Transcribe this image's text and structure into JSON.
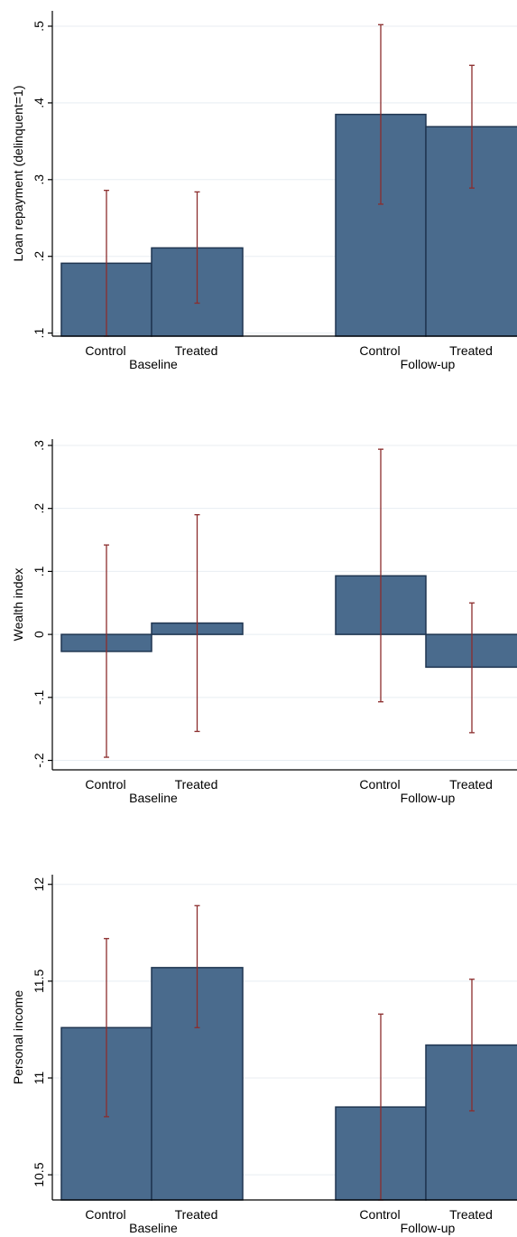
{
  "style": {
    "bar_fill": "#4a6b8d",
    "bar_stroke": "#1f3550",
    "error_color": "#8b2d2d",
    "grid_color": "#e8eef2",
    "axis_color": "#000000"
  },
  "chart_data": [
    {
      "type": "bar",
      "ylabel": "Loan repayment (delinquent=1)",
      "ylim": [
        0.096,
        0.52
      ],
      "yticks": [
        0.1,
        0.2,
        0.3,
        0.4,
        0.5
      ],
      "ytick_labels": [
        ".1",
        ".2",
        ".3",
        ".4",
        ".5"
      ],
      "baseline": 0.096,
      "groups": [
        "Baseline",
        "Follow-up"
      ],
      "categories": [
        "Control",
        "Treated"
      ],
      "values": [
        [
          0.191,
          0.211
        ],
        [
          0.385,
          0.369
        ]
      ],
      "ci_low": [
        [
          0.096,
          0.139
        ],
        [
          0.268,
          0.289
        ]
      ],
      "ci_high": [
        [
          0.286,
          0.284
        ],
        [
          0.502,
          0.449
        ]
      ],
      "grid": true
    },
    {
      "type": "bar",
      "ylabel": "Wealth index",
      "ylim": [
        -0.215,
        0.31
      ],
      "yticks": [
        -0.2,
        -0.1,
        0,
        0.1,
        0.2,
        0.3
      ],
      "ytick_labels": [
        "-.2",
        "-.1",
        "0",
        ".1",
        ".2",
        ".3"
      ],
      "baseline": 0,
      "groups": [
        "Baseline",
        "Follow-up"
      ],
      "categories": [
        "Control",
        "Treated"
      ],
      "values": [
        [
          -0.027,
          0.018
        ],
        [
          0.093,
          -0.052
        ]
      ],
      "ci_low": [
        [
          -0.195,
          -0.154
        ],
        [
          -0.107,
          -0.156
        ]
      ],
      "ci_high": [
        [
          0.142,
          0.19
        ],
        [
          0.294,
          0.05
        ]
      ],
      "grid": true
    },
    {
      "type": "bar",
      "ylabel": "Personal income",
      "ylim": [
        10.37,
        12.05
      ],
      "yticks": [
        10.5,
        11,
        11.5,
        12
      ],
      "ytick_labels": [
        "10.5",
        "11",
        "11.5",
        "12"
      ],
      "baseline": 10.37,
      "groups": [
        "Baseline",
        "Follow-up"
      ],
      "categories": [
        "Control",
        "Treated"
      ],
      "values": [
        [
          11.26,
          11.57
        ],
        [
          10.85,
          11.17
        ]
      ],
      "ci_low": [
        [
          10.8,
          11.26
        ],
        [
          10.37,
          10.83
        ]
      ],
      "ci_high": [
        [
          11.72,
          11.89
        ],
        [
          11.33,
          11.51
        ]
      ],
      "grid": true
    }
  ]
}
